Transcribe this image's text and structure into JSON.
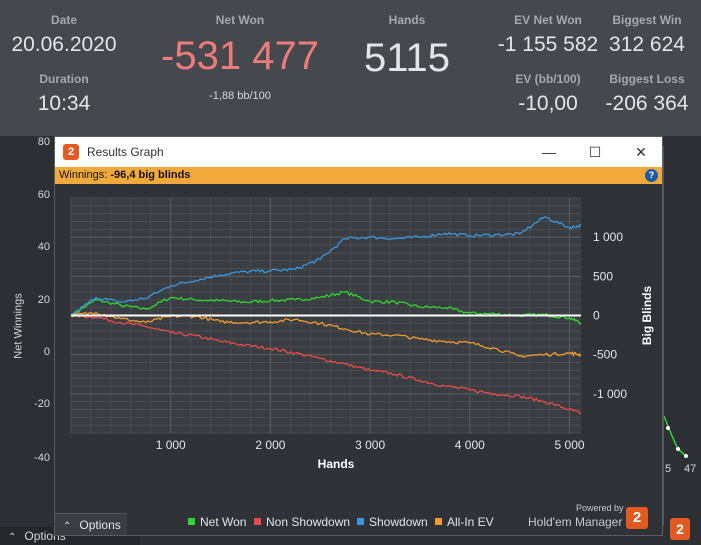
{
  "stats": {
    "date_label": "Date",
    "date_value": "20.06.2020",
    "duration_label": "Duration",
    "duration_value": "10:34",
    "net_won_label": "Net Won",
    "net_won_value": "-531 477",
    "net_won_sub": "-1,88 bb/100",
    "hands_label": "Hands",
    "hands_value": "5115",
    "ev_net_won_label": "EV Net Won",
    "ev_net_won_value": "-1 155 582",
    "ev_bb_label": "EV (bb/100)",
    "ev_bb_value": "-10,00",
    "biggest_win_label": "Biggest Win",
    "biggest_win_value": "312 624",
    "biggest_loss_label": "Biggest Loss",
    "biggest_loss_value": "-206 364",
    "net_won_color": "#ee7b7b"
  },
  "back_chart": {
    "ylabel": "Net Winnings",
    "yticks": [
      "80",
      "60",
      "40",
      "20",
      "0",
      "-20",
      "-40"
    ],
    "xtick_5": "5",
    "xtick_47": "47"
  },
  "bottom": {
    "options_label": "Options"
  },
  "dialog": {
    "title": "Results Graph",
    "icon_glyph": "2",
    "minimize_glyph": "—",
    "maximize_glyph": "☐",
    "close_glyph": "✕",
    "winnings_prefix": "Winnings:",
    "winnings_value": "-96,4 big blinds",
    "help_glyph": "?",
    "options_label": "Options",
    "powered_by": "Powered by",
    "brand": "Hold'em Manager",
    "brand_logo_glyph": "2"
  },
  "legend": [
    {
      "label": "Net Won",
      "color": "#2fd62f"
    },
    {
      "label": "Non Showdown",
      "color": "#e84b4b"
    },
    {
      "label": "Showdown",
      "color": "#3b96de"
    },
    {
      "label": "All-In EV",
      "color": "#ef9a2f"
    }
  ],
  "chart_data": {
    "type": "line",
    "xlabel": "Hands",
    "ylabel": "Big Blinds",
    "xlim": [
      0,
      5115
    ],
    "ylim": [
      -1500,
      1500
    ],
    "x_ticks": [
      1000,
      2000,
      3000,
      4000,
      5000
    ],
    "x_tick_labels": [
      "1 000",
      "2 000",
      "3 000",
      "4 000",
      "5 000"
    ],
    "y_ticks": [
      1000,
      500,
      0,
      -500,
      -1000
    ],
    "y_tick_labels": [
      "1 000",
      "500",
      "0",
      "-500",
      "-1 000"
    ],
    "grid": true,
    "legend_position": "bottom",
    "x": [
      0,
      250,
      500,
      750,
      1000,
      1250,
      1500,
      1750,
      2000,
      2250,
      2500,
      2750,
      3000,
      3250,
      3500,
      3750,
      4000,
      4250,
      4500,
      4750,
      5000,
      5115
    ],
    "series": [
      {
        "name": "Net Won",
        "color": "#2fd62f",
        "values": [
          0,
          200,
          130,
          80,
          230,
          200,
          190,
          170,
          190,
          200,
          230,
          300,
          180,
          170,
          110,
          100,
          30,
          20,
          0,
          10,
          -30,
          -96
        ]
      },
      {
        "name": "Non Showdown",
        "color": "#e84b4b",
        "values": [
          0,
          -20,
          -90,
          -140,
          -220,
          -260,
          -330,
          -380,
          -420,
          -480,
          -550,
          -620,
          -700,
          -750,
          -830,
          -900,
          -950,
          -1000,
          -1030,
          -1100,
          -1200,
          -1250
        ]
      },
      {
        "name": "Showdown",
        "color": "#3b96de",
        "values": [
          0,
          230,
          170,
          220,
          380,
          450,
          520,
          560,
          570,
          590,
          720,
          980,
          1000,
          980,
          1000,
          1050,
          1020,
          1030,
          1040,
          1260,
          1120,
          1150
        ]
      },
      {
        "name": "All-In EV",
        "color": "#ef9a2f",
        "values": [
          0,
          40,
          -40,
          -90,
          -10,
          -10,
          -80,
          -90,
          -80,
          -50,
          -100,
          -170,
          -240,
          -250,
          -300,
          -330,
          -350,
          -420,
          -520,
          -500,
          -480,
          -500
        ]
      }
    ]
  }
}
